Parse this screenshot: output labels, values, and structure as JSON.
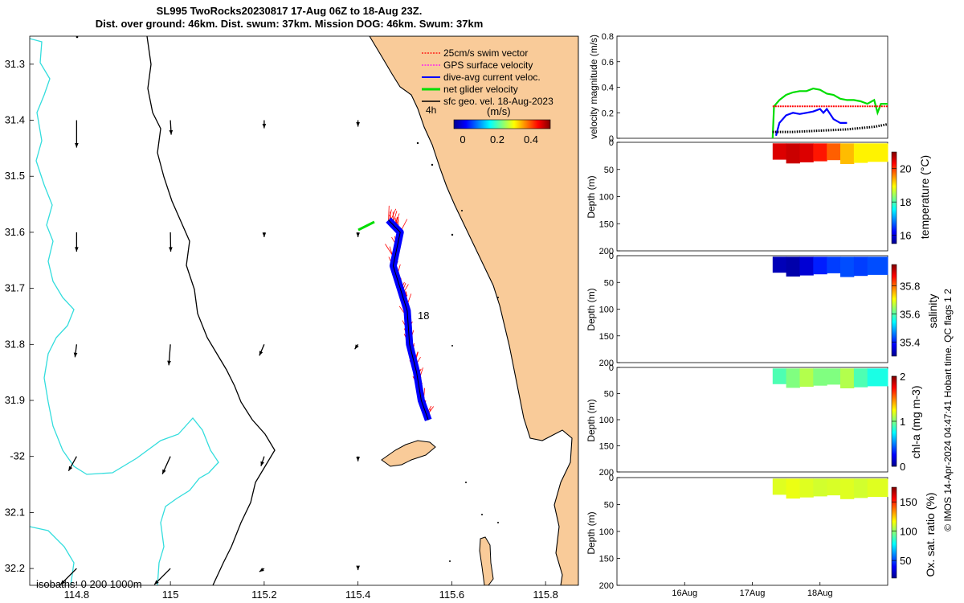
{
  "header": {
    "title_line1": "SL995 TwoRocks20230817 17-Aug 06Z to 18-Aug 23Z.",
    "title_line2": "Dist. over ground: 46km. Dist. swum: 37km. Mission DOG: 46km. Swum: 37km"
  },
  "chart_data": [
    {
      "type": "map",
      "name": "track-map",
      "xlim": [
        114.7,
        115.87
      ],
      "ylim": [
        -32.23,
        -31.25
      ],
      "x_tick_values": [
        114.8,
        115.0,
        115.2,
        115.4,
        115.6,
        115.8
      ],
      "x_tick_labels": [
        "114.8",
        "115",
        "115.2",
        "115.4",
        "115.6",
        "115.8"
      ],
      "y_tick_values": [
        -31.3,
        -31.4,
        -31.5,
        -31.6,
        -31.7,
        -31.8,
        -31.9,
        -32.0,
        -32.1,
        -32.2
      ],
      "y_tick_labels": [
        "31.3",
        "31.4",
        "31.5",
        "31.6",
        "31.7",
        "31.8",
        "31.9",
        "-32",
        "32.1",
        "32.2"
      ],
      "legend": [
        {
          "label": "25cm/s swim vector",
          "color": "#ff0000",
          "style": "dotted"
        },
        {
          "label": "GPS surface velocity",
          "color": "#ff00ff",
          "style": "dotted"
        },
        {
          "label": "dive-avg current veloc.",
          "color": "#0000ff",
          "style": "solid"
        },
        {
          "label": "net glider velocity",
          "color": "#00dd00",
          "style": "solid"
        },
        {
          "label": "sfc geo. vel. 18-Aug-2023",
          "color": "#000000",
          "style": "solid"
        }
      ],
      "legend_position": "top-right",
      "colorbar": {
        "ticks": [
          "0",
          "0.2",
          "0.4"
        ],
        "label": "(m/s)",
        "range": [
          0,
          0.5
        ]
      },
      "time_label": "4h",
      "annotations": [
        "18"
      ],
      "isobath_note": "isobaths: 0   200  1000m",
      "glider_track": [
        [
          115.465,
          -31.578
        ],
        [
          115.49,
          -31.6
        ],
        [
          115.475,
          -31.66
        ],
        [
          115.49,
          -31.7
        ],
        [
          115.505,
          -31.74
        ],
        [
          115.51,
          -31.8
        ],
        [
          115.525,
          -31.85
        ],
        [
          115.535,
          -31.9
        ],
        [
          115.55,
          -31.935
        ]
      ],
      "geo_velocity_arrows": [
        {
          "lon": 114.8,
          "lat": -31.4,
          "u": 0,
          "v": -0.17
        },
        {
          "lon": 115.0,
          "lat": -31.4,
          "u": 0.005,
          "v": -0.09
        },
        {
          "lon": 115.2,
          "lat": -31.4,
          "u": 0,
          "v": -0.05
        },
        {
          "lon": 115.4,
          "lat": -31.4,
          "u": 0,
          "v": -0.04
        },
        {
          "lon": 114.8,
          "lat": -31.6,
          "u": 0,
          "v": -0.12
        },
        {
          "lon": 115.0,
          "lat": -31.6,
          "u": 0.002,
          "v": -0.12
        },
        {
          "lon": 115.2,
          "lat": -31.6,
          "u": 0,
          "v": -0.03
        },
        {
          "lon": 115.4,
          "lat": -31.6,
          "u": 0,
          "v": -0.03
        },
        {
          "lon": 114.8,
          "lat": -31.8,
          "u": -0.01,
          "v": -0.08
        },
        {
          "lon": 115.0,
          "lat": -31.8,
          "u": -0.01,
          "v": -0.13
        },
        {
          "lon": 115.2,
          "lat": -31.8,
          "u": -0.03,
          "v": -0.07
        },
        {
          "lon": 115.4,
          "lat": -31.8,
          "u": -0.02,
          "v": -0.03
        },
        {
          "lon": 114.8,
          "lat": -32.0,
          "u": -0.05,
          "v": -0.09
        },
        {
          "lon": 115.0,
          "lat": -32.0,
          "u": -0.05,
          "v": -0.11
        },
        {
          "lon": 115.2,
          "lat": -32.0,
          "u": -0.02,
          "v": -0.06
        },
        {
          "lon": 115.4,
          "lat": -32.0,
          "u": 0,
          "v": -0.03
        },
        {
          "lon": 114.8,
          "lat": -32.2,
          "u": -0.1,
          "v": -0.1
        },
        {
          "lon": 115.0,
          "lat": -32.2,
          "u": -0.1,
          "v": -0.1
        },
        {
          "lon": 115.2,
          "lat": -32.2,
          "u": -0.03,
          "v": -0.02
        },
        {
          "lon": 115.4,
          "lat": -32.2,
          "u": 0,
          "v": -0.01
        }
      ]
    },
    {
      "type": "line",
      "name": "velocity-magnitude",
      "ylabel": "velocity magnitude (m/s)",
      "ylim": [
        0,
        0.8
      ],
      "y_ticks": [
        "0",
        "0.2",
        "0.4",
        "0.6",
        "0.8"
      ],
      "series": [
        {
          "name": "net glider velocity",
          "color": "#00dd00",
          "x": [
            17.3,
            17.32,
            17.4,
            17.5,
            17.6,
            17.7,
            17.8,
            17.9,
            18.0,
            18.1,
            18.2,
            18.3,
            18.4,
            18.5,
            18.6,
            18.7,
            18.8,
            18.85,
            18.9,
            19.0
          ],
          "values": [
            0.0,
            0.25,
            0.3,
            0.34,
            0.36,
            0.37,
            0.37,
            0.39,
            0.38,
            0.35,
            0.34,
            0.31,
            0.3,
            0.3,
            0.29,
            0.27,
            0.3,
            0.2,
            0.27,
            0.27
          ]
        },
        {
          "name": "dive-avg current veloc.",
          "color": "#0000ff",
          "x": [
            17.35,
            17.4,
            17.5,
            17.6,
            17.7,
            17.8,
            17.9,
            18.0,
            18.05,
            18.1,
            18.2,
            18.3,
            18.4
          ],
          "values": [
            0.02,
            0.12,
            0.18,
            0.2,
            0.19,
            0.2,
            0.21,
            0.23,
            0.2,
            0.23,
            0.15,
            0.12,
            0.12
          ]
        },
        {
          "name": "25cm/s swim vector",
          "color": "#ff0000",
          "x": [
            17.3,
            19.0
          ],
          "values": [
            0.25,
            0.25
          ]
        },
        {
          "name": "sfc geo. vel.",
          "color": "#000000",
          "x": [
            17.3,
            17.6,
            18.0,
            18.4,
            18.8,
            19.0
          ],
          "values": [
            0.05,
            0.05,
            0.06,
            0.07,
            0.09,
            0.11
          ]
        }
      ]
    },
    {
      "type": "heatmap",
      "name": "temperature-section",
      "ylabel": "Depth (m)",
      "ylim": [
        0,
        200
      ],
      "y_ticks": [
        "0",
        "50",
        "100",
        "150",
        "200"
      ],
      "colorbar_label": "temperature (°C)",
      "colorbar_ticks": [
        "16",
        "18",
        "20"
      ],
      "colorbar_range": [
        15.5,
        21
      ],
      "x": [
        17.3,
        17.5,
        17.7,
        17.9,
        18.1,
        18.3,
        18.5,
        18.7,
        19.0
      ],
      "values": [
        20.5,
        20.6,
        20.5,
        20.2,
        19.8,
        19.3,
        19.0,
        19.0,
        19.0
      ]
    },
    {
      "type": "heatmap",
      "name": "salinity-section",
      "ylabel": "Depth (m)",
      "ylim": [
        0,
        200
      ],
      "y_ticks": [
        "0",
        "50",
        "100",
        "150",
        "200"
      ],
      "colorbar_label": "salinity",
      "colorbar_ticks": [
        "35.4",
        "35.6",
        "35.8"
      ],
      "colorbar_range": [
        35.3,
        35.95
      ],
      "x": [
        17.3,
        17.5,
        17.7,
        17.9,
        18.1,
        18.3,
        18.5,
        18.7,
        19.0
      ],
      "values": [
        35.33,
        35.32,
        35.35,
        35.4,
        35.42,
        35.43,
        35.42,
        35.43,
        35.44
      ]
    },
    {
      "type": "heatmap",
      "name": "chla-section",
      "ylabel": "Depth (m)",
      "ylim": [
        0,
        200
      ],
      "y_ticks": [
        "0",
        "50",
        "100",
        "150",
        "200"
      ],
      "colorbar_label": "chl-a (mg m-3)",
      "colorbar_ticks": [
        "0",
        "1",
        "2"
      ],
      "colorbar_range": [
        0,
        2
      ],
      "x": [
        17.3,
        17.5,
        17.7,
        17.9,
        18.1,
        18.3,
        18.5,
        18.7,
        19.0
      ],
      "values": [
        0.9,
        1.0,
        1.1,
        1.0,
        1.0,
        1.1,
        0.9,
        0.8,
        0.7
      ]
    },
    {
      "type": "heatmap",
      "name": "oxygen-section",
      "ylabel": "Depth (m)",
      "ylim": [
        0,
        200
      ],
      "y_ticks": [
        "0",
        "50",
        "100",
        "150",
        "200"
      ],
      "colorbar_label": "Ox. sat. ratio (%)",
      "colorbar_ticks": [
        "50",
        "100",
        "150"
      ],
      "colorbar_range": [
        20,
        175
      ],
      "x": [
        17.3,
        17.5,
        17.7,
        17.9,
        18.1,
        18.3,
        18.5,
        18.7,
        19.0
      ],
      "values": [
        112,
        114,
        112,
        110,
        111,
        112,
        110,
        112,
        112
      ]
    }
  ],
  "time_axis": {
    "labels": [
      "16Aug",
      "17Aug",
      "18Aug"
    ],
    "values": [
      16,
      17,
      18
    ],
    "xlim": [
      15.0,
      19.0
    ]
  },
  "side_label": "© IMOS 14-Apr-2024 04:47:41 Hobart time. QC flags 1  2",
  "colors": {
    "land": "#f9cb99",
    "coast_line": "#000000",
    "isobath_0": "#000000",
    "isobath_1000": "#33dddd",
    "track_current": "#0000ff",
    "swim": "#ff0000",
    "net": "#00dd00"
  }
}
